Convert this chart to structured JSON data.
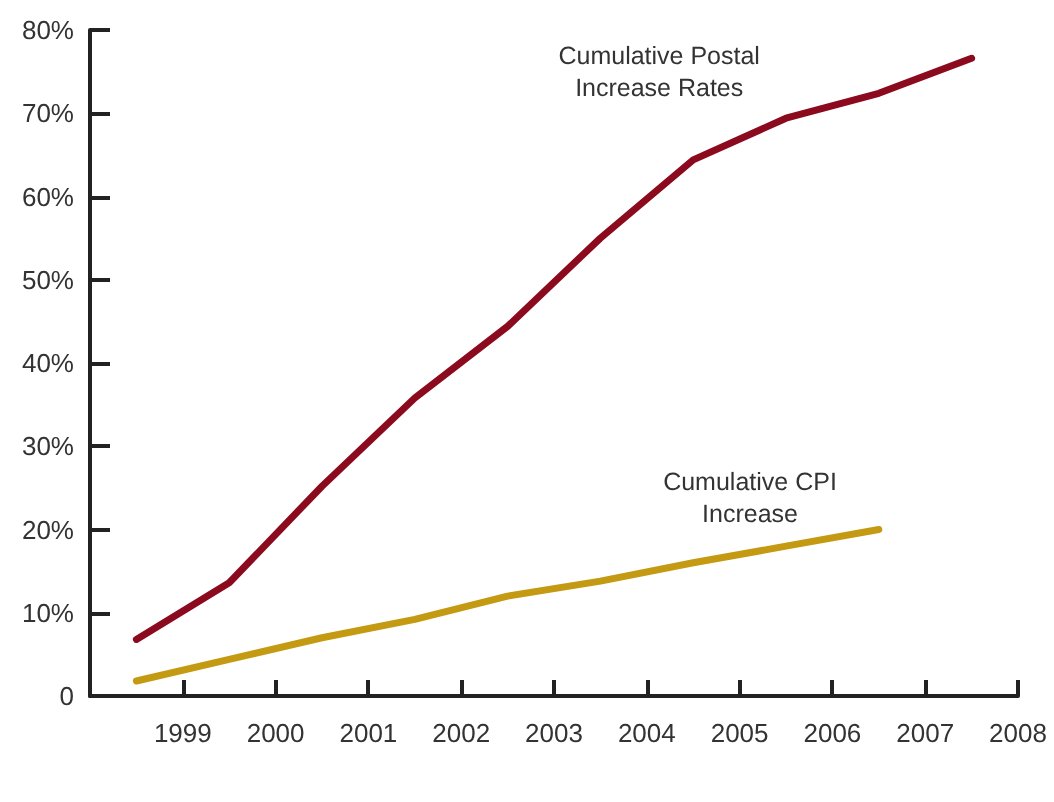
{
  "chart_data": {
    "type": "line",
    "xlim": [
      1998,
      2008
    ],
    "xticks": [
      1999,
      2000,
      2001,
      2002,
      2003,
      2004,
      2005,
      2006,
      2007,
      2008
    ],
    "ylim": [
      0,
      80
    ],
    "yticks": [
      0,
      {
        "value": 10,
        "label": "10%"
      },
      {
        "value": 20,
        "label": "20%"
      },
      {
        "value": 30,
        "label": "30%"
      },
      {
        "value": 40,
        "label": "40%"
      },
      {
        "value": 50,
        "label": "50%"
      },
      {
        "value": 60,
        "label": "60%"
      },
      {
        "value": 70,
        "label": "70%"
      },
      {
        "value": 80,
        "label": "80%"
      }
    ],
    "grid": false,
    "legend": false,
    "marker": "none",
    "line_style": "solid",
    "series": [
      {
        "name": "Cumulative Postal\nIncrease Rates",
        "color": "#8b0a1e",
        "x": [
          1998.5,
          1999.5,
          2000.5,
          2001.5,
          2002.5,
          2003.5,
          2004.5,
          2005.5,
          2006.5,
          2007.5
        ],
        "values": [
          6.8,
          13.6,
          25.2,
          35.8,
          44.4,
          55.0,
          64.4,
          69.4,
          72.4,
          76.6
        ]
      },
      {
        "name": "Cumulative CPI\nIncrease",
        "color": "#c49a12",
        "x": [
          1998.5,
          1999.5,
          2000.5,
          2001.5,
          2002.5,
          2003.5,
          2004.5,
          2005.5,
          2006.5
        ],
        "values": [
          1.8,
          4.4,
          7.0,
          9.2,
          12.0,
          13.8,
          16.0,
          18.0,
          20.0
        ]
      }
    ]
  }
}
